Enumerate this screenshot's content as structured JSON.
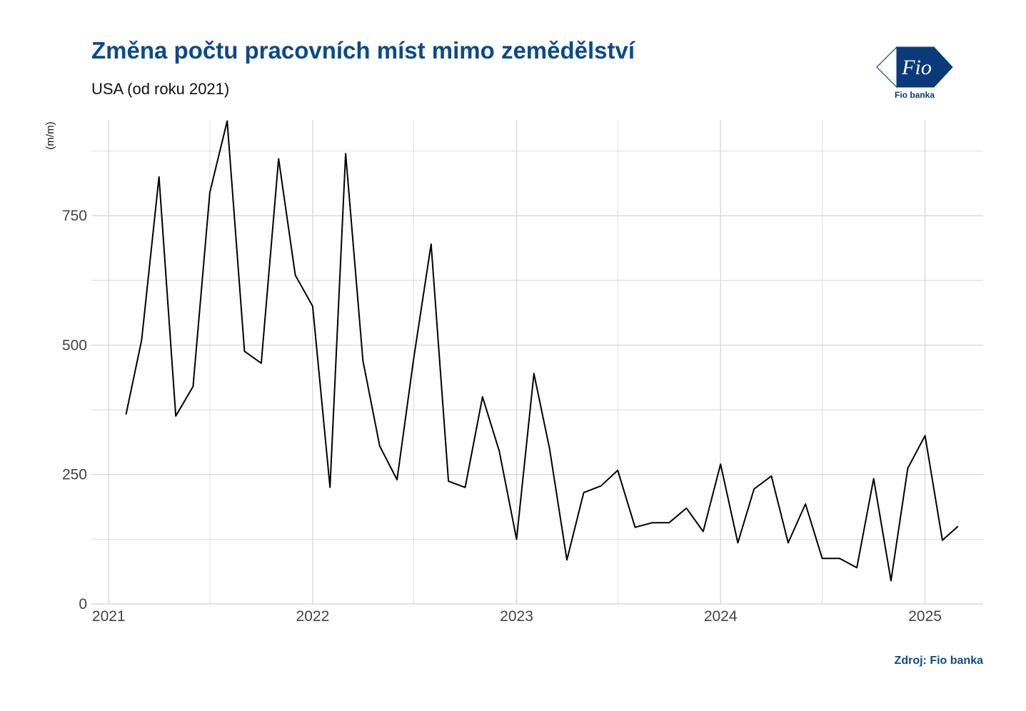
{
  "header": {
    "title": "Změna počtu pracovních míst mimo zemědělství",
    "subtitle": "USA (od roku 2021)"
  },
  "logo": {
    "mark_text": "Fio",
    "caption": "Fio banka",
    "color": "#0b3a7a"
  },
  "footer": {
    "source": "Zdroj: Fio banka"
  },
  "colors": {
    "title": "#0b4a8b",
    "line": "#000000",
    "grid": "#d4d4d4"
  },
  "chart_data": {
    "type": "line",
    "title": "Změna počtu pracovních míst mimo zemědělství",
    "subtitle": "USA (od roku 2021)",
    "xlabel": "",
    "ylabel": "(m/m)",
    "ylim": [
      0,
      935
    ],
    "xlim": [
      "2020-12-01",
      "2025-04-15"
    ],
    "grid": true,
    "y_ticks": [
      0,
      250,
      500,
      750
    ],
    "x_ticks": [
      "2021",
      "2022",
      "2023",
      "2024",
      "2025"
    ],
    "series": [
      {
        "x": [
          "2021-02-01",
          "2021-03-01",
          "2021-04-01",
          "2021-05-01",
          "2021-06-01",
          "2021-07-01",
          "2021-08-01",
          "2021-09-01",
          "2021-10-01",
          "2021-11-01",
          "2021-12-01",
          "2022-01-01",
          "2022-02-01",
          "2022-03-01",
          "2022-04-01",
          "2022-05-01",
          "2022-06-01",
          "2022-07-01",
          "2022-08-01",
          "2022-09-01",
          "2022-10-01",
          "2022-11-01",
          "2022-12-01",
          "2023-01-01",
          "2023-02-01",
          "2023-03-01",
          "2023-04-01",
          "2023-05-01",
          "2023-06-01",
          "2023-07-01",
          "2023-08-01",
          "2023-09-01",
          "2023-10-01",
          "2023-11-01",
          "2023-12-01",
          "2024-01-01",
          "2024-02-01",
          "2024-03-01",
          "2024-04-01",
          "2024-05-01",
          "2024-06-01",
          "2024-07-01",
          "2024-08-01",
          "2024-09-01",
          "2024-10-01",
          "2024-11-01",
          "2024-12-01",
          "2025-01-01",
          "2025-02-01",
          "2025-03-01"
        ],
        "values": [
          366,
          510,
          825,
          363,
          420,
          795,
          933,
          488,
          465,
          860,
          635,
          575,
          225,
          870,
          470,
          305,
          240,
          475,
          695,
          237,
          225,
          400,
          295,
          125,
          445,
          300,
          85,
          215,
          228,
          258,
          148,
          157,
          157,
          185,
          140,
          270,
          118,
          222,
          247,
          118,
          193,
          88,
          88,
          70,
          242,
          45,
          262,
          325,
          123,
          150
        ]
      }
    ]
  }
}
